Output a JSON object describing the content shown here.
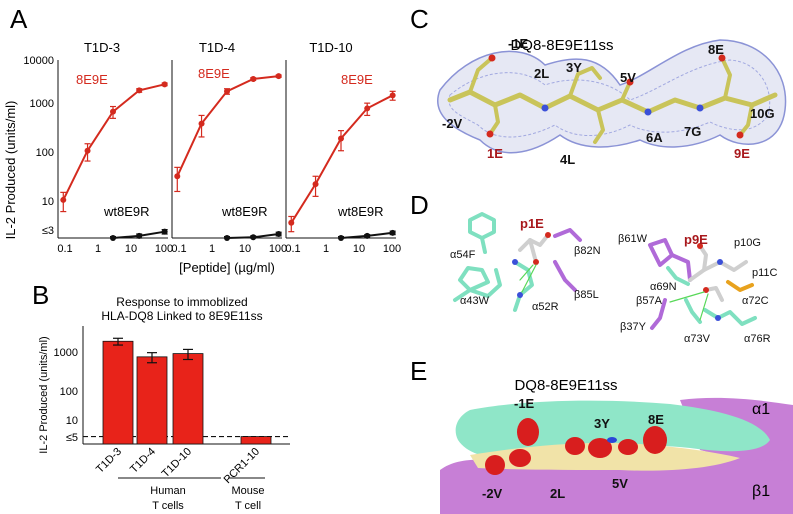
{
  "panels": {
    "A": "A",
    "B": "B",
    "C": "C",
    "D": "D",
    "E": "E"
  },
  "panel_a": {
    "ylabel": "IL-2 Produced (units/ml)",
    "xlabel": "[Peptide] (µg/ml)",
    "y_ticks": [
      "10000",
      "1000",
      "100",
      "10",
      "≤3"
    ],
    "x_ticks": [
      "0.1",
      "1",
      "10",
      "100"
    ],
    "subplots": [
      {
        "title": "T1D-3",
        "series_labels": [
          "8E9E",
          "wt8E9R"
        ]
      },
      {
        "title": "T1D-4",
        "series_labels": [
          "8E9E",
          "wt8E9R"
        ]
      },
      {
        "title": "T1D-10",
        "series_labels": [
          "8E9E",
          "wt8E9R"
        ]
      }
    ]
  },
  "chart_data": [
    {
      "type": "line",
      "title": "T1D-3",
      "xlabel": "[Peptide] (µg/ml)",
      "ylabel": "IL-2 Produced (units/ml)",
      "xscale": "log",
      "yscale": "log",
      "xlim": [
        0.3,
        120
      ],
      "ylim": [
        3,
        10000
      ],
      "series": [
        {
          "name": "8E9E",
          "color": "#d42a1e",
          "points": [
            [
              0.4,
              17,
              7
            ],
            [
              1.5,
              160,
              60
            ],
            [
              6,
              950,
              250
            ],
            [
              25,
              2500,
              200
            ],
            [
              100,
              3300,
              200
            ]
          ]
        },
        {
          "name": "wt8E9R",
          "color": "#111111",
          "points": [
            [
              6,
              3,
              0.2
            ],
            [
              25,
              3.3,
              0.3
            ],
            [
              100,
              4,
              0.4
            ]
          ]
        }
      ]
    },
    {
      "type": "line",
      "title": "T1D-4",
      "xlabel": "[Peptide] (µg/ml)",
      "ylabel": "IL-2 Produced (units/ml)",
      "xscale": "log",
      "yscale": "log",
      "xlim": [
        0.3,
        120
      ],
      "ylim": [
        3,
        10000
      ],
      "series": [
        {
          "name": "8E9E",
          "color": "#d42a1e",
          "points": [
            [
              0.4,
              50,
              25
            ],
            [
              1.5,
              550,
              250
            ],
            [
              6,
              2400,
              300
            ],
            [
              25,
              4200,
              250
            ],
            [
              100,
              4800,
              250
            ]
          ]
        },
        {
          "name": "wt8E9R",
          "color": "#111111",
          "points": [
            [
              6,
              3,
              0.2
            ],
            [
              25,
              3.1,
              0.2
            ],
            [
              100,
              3.6,
              0.3
            ]
          ]
        }
      ]
    },
    {
      "type": "line",
      "title": "T1D-10",
      "xlabel": "[Peptide] (µg/ml)",
      "ylabel": "IL-2 Produced (units/ml)",
      "xscale": "log",
      "yscale": "log",
      "xlim": [
        0.3,
        120
      ],
      "ylim": [
        3,
        10000
      ],
      "series": [
        {
          "name": "8E9E",
          "color": "#d42a1e",
          "points": [
            [
              0.4,
              6,
              2
            ],
            [
              1.5,
              35,
              15
            ],
            [
              6,
              280,
              120
            ],
            [
              25,
              1100,
              300
            ],
            [
              100,
              2000,
              400
            ]
          ]
        },
        {
          "name": "wt8E9R",
          "color": "#111111",
          "points": [
            [
              6,
              3,
              0.2
            ],
            [
              25,
              3.3,
              0.2
            ],
            [
              100,
              3.8,
              0.3
            ]
          ]
        }
      ]
    },
    {
      "type": "bar",
      "title": "Response to immoblized HLA-DQ8 Linked to 8E9E11ss",
      "ylabel": "IL-2 Produced (units/ml)",
      "yscale": "log",
      "ylim": [
        3,
        10000
      ],
      "y_ticks": [
        "1000",
        "100",
        "10",
        "≤5"
      ],
      "categories": [
        "T1D-3",
        "T1D-4",
        "T1D-10",
        "PCR1-10"
      ],
      "values": [
        3500,
        1200,
        1500,
        5
      ],
      "errors": [
        800,
        400,
        500,
        0
      ],
      "color": "#e8231a",
      "groups": [
        {
          "label_lines": [
            "Human",
            "T cells"
          ],
          "categories": [
            "T1D-3",
            "T1D-4",
            "T1D-10"
          ]
        },
        {
          "label_lines": [
            "Mouse",
            "T cell"
          ],
          "categories": [
            "PCR1-10"
          ]
        }
      ],
      "threshold": 5
    }
  ],
  "panel_c": {
    "title": "DQ8-8E9E11ss",
    "residues": [
      "-1E",
      "2L",
      "3Y",
      "5V",
      "8E",
      "-2V",
      "1E",
      "4L",
      "6A",
      "7G",
      "9E",
      "10G"
    ],
    "highlight": [
      "1E",
      "9E"
    ]
  },
  "panel_d": {
    "pocket_1": {
      "title": "p1E",
      "residues": [
        "α54F",
        "β82N",
        "β85L",
        "α43W",
        "α52R"
      ]
    },
    "pocket_9": {
      "title": "p9E",
      "residues": [
        "β61W",
        "p10G",
        "p11C",
        "α69N",
        "β57A",
        "α72C",
        "β37Y",
        "α73V",
        "α76R"
      ]
    }
  },
  "panel_e": {
    "title": "DQ8-8E9E11ss",
    "chain_labels": [
      "α1",
      "β1"
    ],
    "residues": [
      "-1E",
      "3Y",
      "8E",
      "-2V",
      "2L",
      "5V"
    ]
  }
}
